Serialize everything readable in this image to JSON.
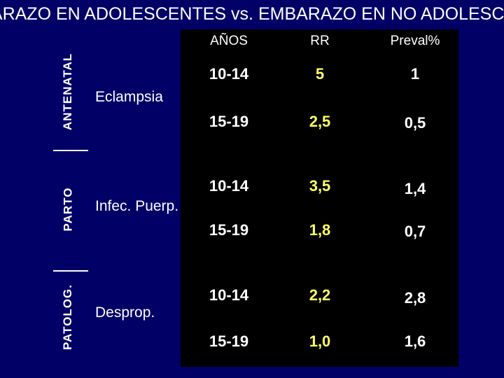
{
  "title": "ARAZO EN ADOLESCENTES vs. EMBARAZO EN NO ADOLESCE",
  "sections": {
    "antenatal": "ANTENATAL",
    "parto": "PARTO",
    "patolog": "PATOLOG."
  },
  "headers": {
    "anos": "AÑOS",
    "rr": "RR",
    "preval": "Preval%"
  },
  "groups": [
    {
      "label": "Eclampsia",
      "rows": [
        {
          "age": "10-14",
          "rr": "5",
          "preval": "1"
        },
        {
          "age": "15-19",
          "rr": "2,5",
          "preval": "0,5"
        }
      ]
    },
    {
      "label": "Infec. Puerp.",
      "rows": [
        {
          "age": "10-14",
          "rr": "3,5",
          "preval": "1,4"
        },
        {
          "age": "15-19",
          "rr": "1,8",
          "preval": "0,7"
        }
      ]
    },
    {
      "label": "Desprop.",
      "rows": [
        {
          "age": "10-14",
          "rr": "2,2",
          "preval": "2,8"
        },
        {
          "age": "15-19",
          "rr": "1,0",
          "preval": "1,6"
        }
      ]
    }
  ],
  "colors": {
    "background": "#000066",
    "table": "#000000",
    "rr_value": "#ffff66"
  }
}
